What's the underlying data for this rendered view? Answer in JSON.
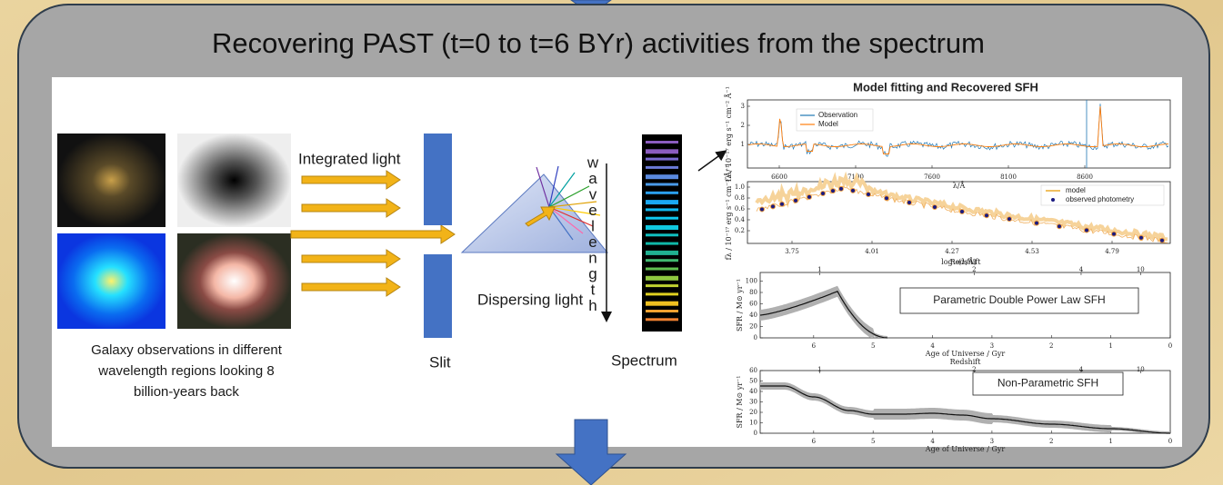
{
  "title": "Recovering PAST (t=0 to t=6 BYr) activities from the spectrum",
  "diagram": {
    "integrated_light": "Integrated light",
    "wavelength_letters": [
      "w",
      "a",
      "v",
      "e",
      "l",
      "e",
      "n",
      "g",
      "t",
      "h"
    ],
    "dispersing_light": "Dispersing light",
    "caption_lines": [
      "Galaxy observations in different",
      "wavelength regions looking 8",
      "billion-years back"
    ],
    "slit": "Slit",
    "spectrum": "Spectrum"
  },
  "results": {
    "title": "Model fitting and Recovered SFH",
    "spectrum_fit": {
      "legend": [
        "Observation",
        "Model"
      ],
      "xlabel": "λ/Å",
      "ylabel": "fλ / 10⁻¹⁷ erg s⁻¹ cm⁻² Å⁻¹",
      "xticks": [
        "6600",
        "7100",
        "7600",
        "8100",
        "8600"
      ],
      "yticks": [
        "1",
        "2",
        "3"
      ]
    },
    "photometry_fit": {
      "legend": [
        "model",
        "observed photometry"
      ],
      "xlabel": "log₁₀(λ/Å)",
      "ylabel": "fλ / 10⁻¹⁷ erg s⁻¹ cm⁻² Å⁻¹",
      "xticks": [
        "3.75",
        "4.01",
        "4.27",
        "4.53",
        "4.79"
      ],
      "yticks": [
        "0.2",
        "0.4",
        "0.6",
        "0.8",
        "1.0"
      ]
    },
    "parametric_sfh": {
      "label": "Parametric  Double Power Law SFH",
      "top_axis_label": "Redshift",
      "top_ticks": [
        "1",
        "2",
        "4",
        "10"
      ],
      "xlabel": "Age of Universe / Gyr",
      "ylabel": "SFR / M⊙ yr⁻¹",
      "xticks": [
        "6",
        "5",
        "4",
        "3",
        "2",
        "1",
        "0"
      ],
      "yticks": [
        "0",
        "20",
        "40",
        "60",
        "80",
        "100"
      ]
    },
    "nonparametric_sfh": {
      "label": "Non-Parametric SFH",
      "top_axis_label": "Redshift",
      "top_ticks": [
        "1",
        "2",
        "4",
        "10"
      ],
      "xlabel": "Age of Universe / Gyr",
      "ylabel": "SFR / M⊙ yr⁻¹",
      "xticks": [
        "6",
        "5",
        "4",
        "3",
        "2",
        "1",
        "0"
      ],
      "yticks": [
        "0",
        "10",
        "20",
        "30",
        "40",
        "50",
        "60"
      ]
    }
  }
}
